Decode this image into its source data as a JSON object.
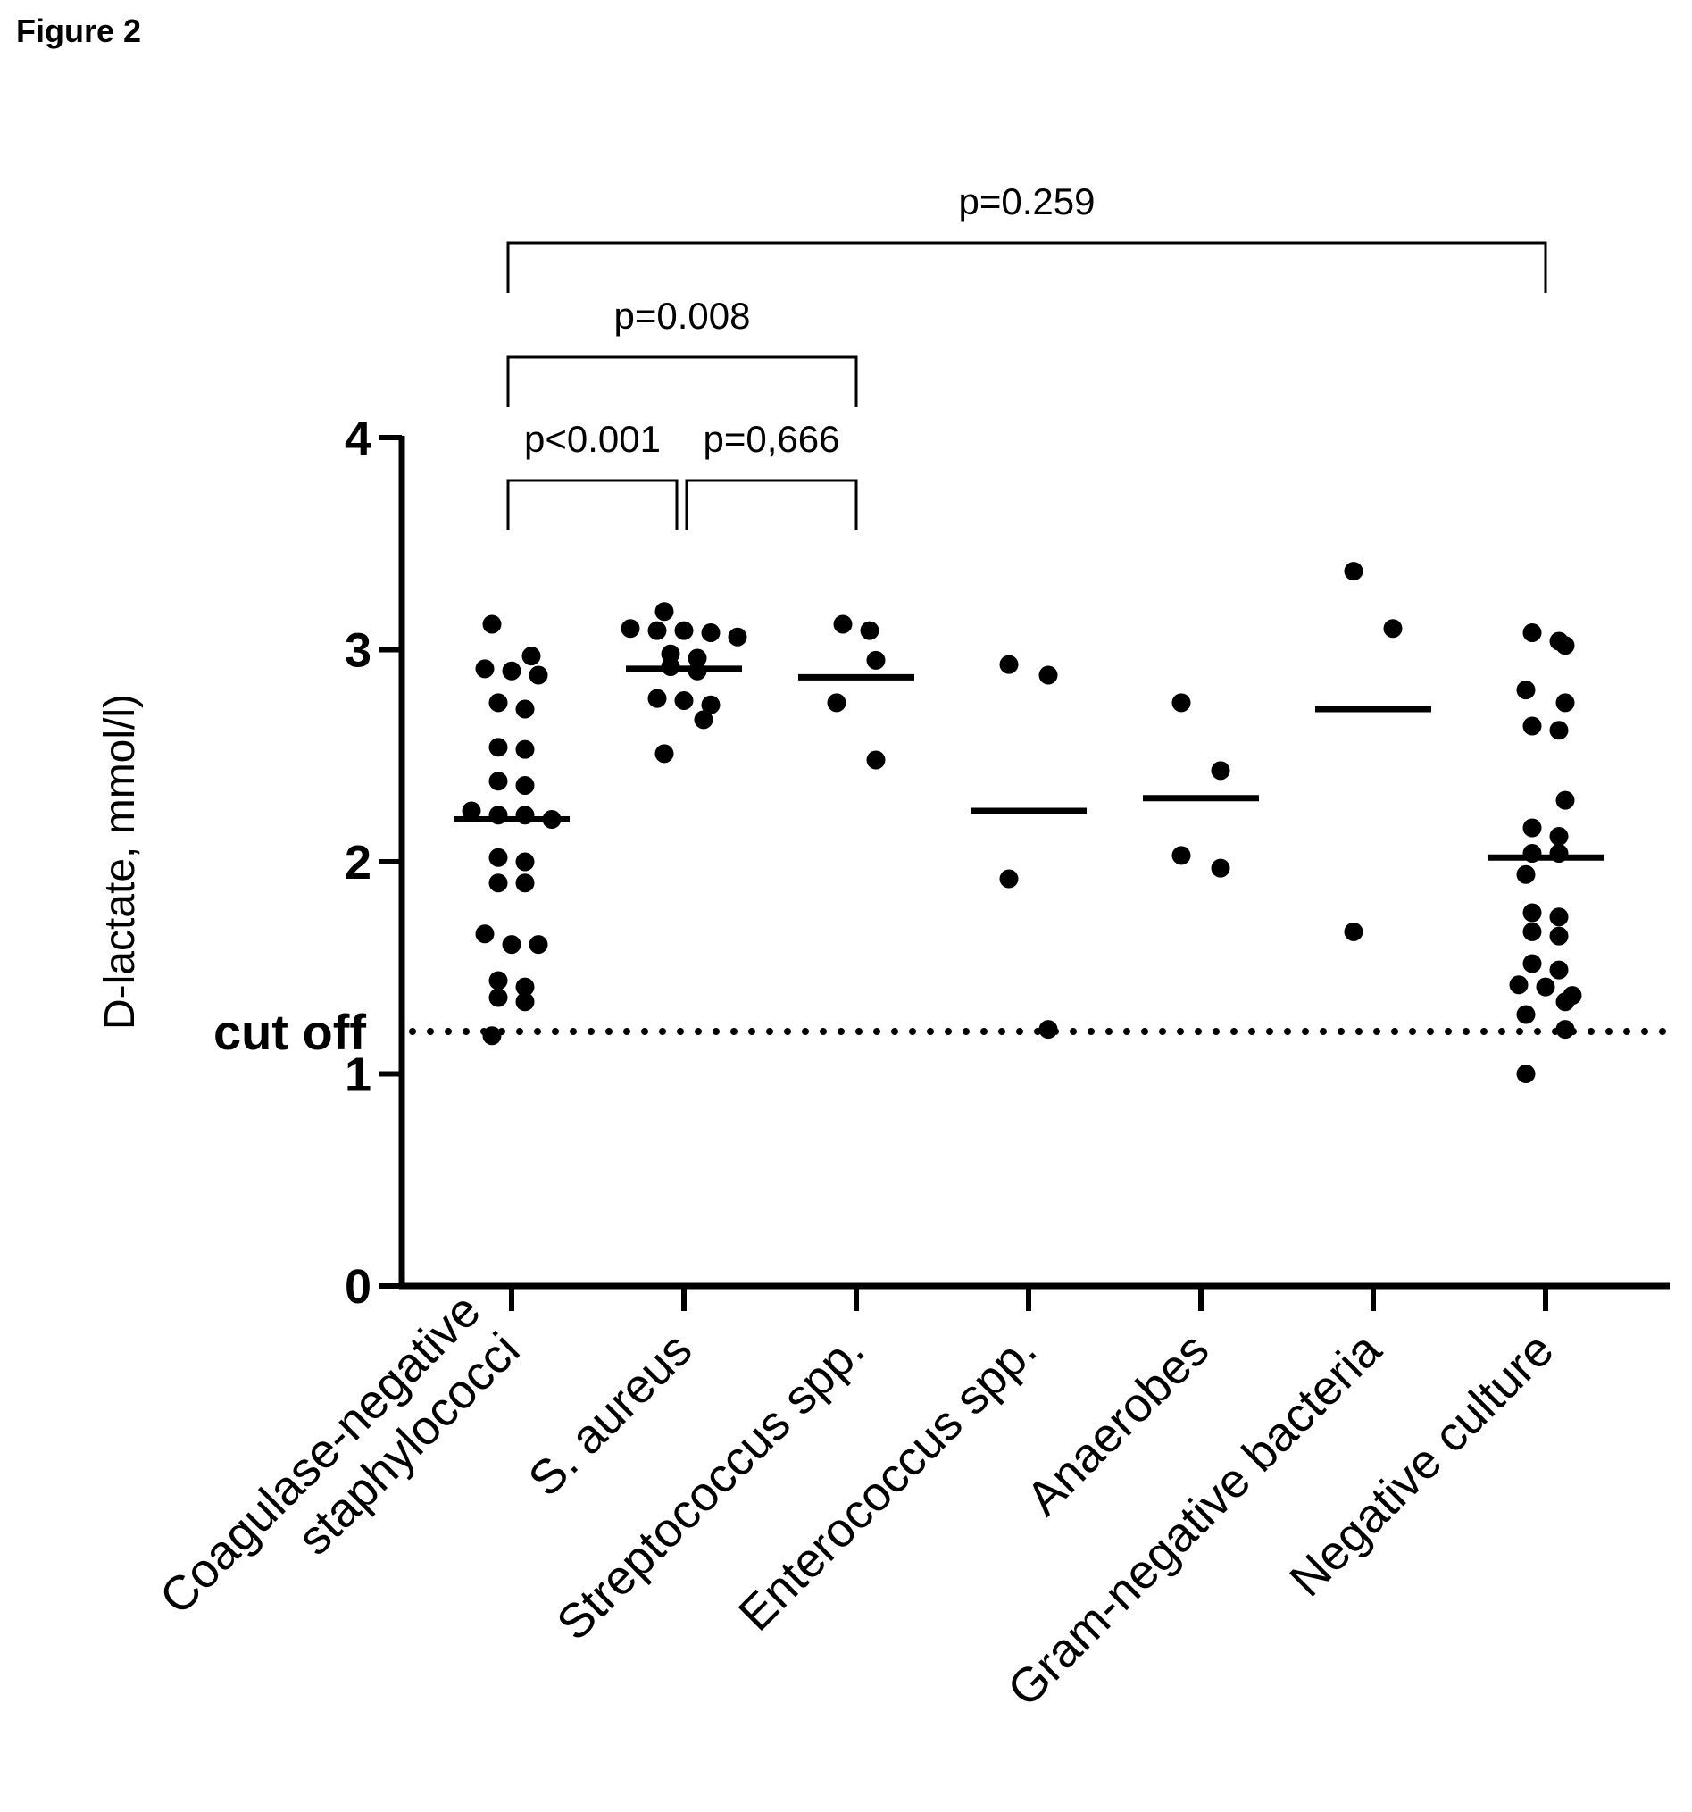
{
  "figure_label": "Figure 2",
  "chart_data": {
    "type": "scatter",
    "ylabel": "D-lactate, mmol/l)",
    "ylim": [
      0,
      4
    ],
    "yticks": [
      0,
      1,
      2,
      3,
      4
    ],
    "cutoff": {
      "label": "cut off",
      "value": 1.2
    },
    "categories": [
      {
        "lines": [
          "Coagulase-negative",
          "staphylococci"
        ],
        "median": 2.2,
        "points": [
          3.12,
          2.97,
          2.9,
          2.88,
          2.91,
          2.75,
          2.72,
          2.54,
          2.53,
          2.38,
          2.36,
          2.24,
          2.22,
          2.2,
          2.22,
          2.0,
          2.02,
          1.9,
          1.9,
          1.66,
          1.61,
          1.61,
          1.44,
          1.36,
          1.34,
          1.41,
          1.18
        ]
      },
      {
        "lines": [
          "S. aureus"
        ],
        "median": 2.91,
        "points": [
          3.18,
          3.1,
          3.09,
          3.09,
          3.08,
          3.06,
          2.98,
          2.96,
          2.9,
          2.92,
          2.77,
          2.76,
          2.74,
          2.67,
          2.51
        ]
      },
      {
        "lines": [
          "Streptococcus spp."
        ],
        "median": 2.87,
        "points": [
          3.12,
          3.09,
          2.95,
          2.75,
          2.48
        ]
      },
      {
        "lines": [
          "Enterococcus spp."
        ],
        "median": 2.24,
        "points": [
          2.93,
          2.88,
          1.92,
          1.21
        ]
      },
      {
        "lines": [
          "Anaerobes"
        ],
        "median": 2.3,
        "points": [
          2.75,
          2.43,
          2.03,
          1.97
        ]
      },
      {
        "lines": [
          "Gram-negative bacteria"
        ],
        "median": 2.72,
        "points": [
          3.37,
          3.1,
          1.67
        ]
      },
      {
        "lines": [
          "Negative culture"
        ],
        "median": 2.02,
        "points": [
          3.08,
          3.04,
          3.02,
          2.81,
          2.75,
          2.64,
          2.62,
          2.29,
          2.16,
          2.12,
          2.04,
          2.04,
          1.94,
          1.76,
          1.74,
          1.67,
          1.65,
          1.52,
          1.49,
          1.42,
          1.41,
          1.37,
          1.34,
          1.28,
          1.21,
          1.0
        ]
      }
    ],
    "comparisons": [
      {
        "from": 0,
        "to": 1,
        "label": "p<0.001",
        "tier": 0
      },
      {
        "from": 1,
        "to": 2,
        "label": "p=0,666",
        "tier": 0
      },
      {
        "from": 0,
        "to": 2,
        "label": "p=0.008",
        "tier": 1
      },
      {
        "from": 0,
        "to": 6,
        "label": "p=0.259",
        "tier": 2
      }
    ]
  }
}
